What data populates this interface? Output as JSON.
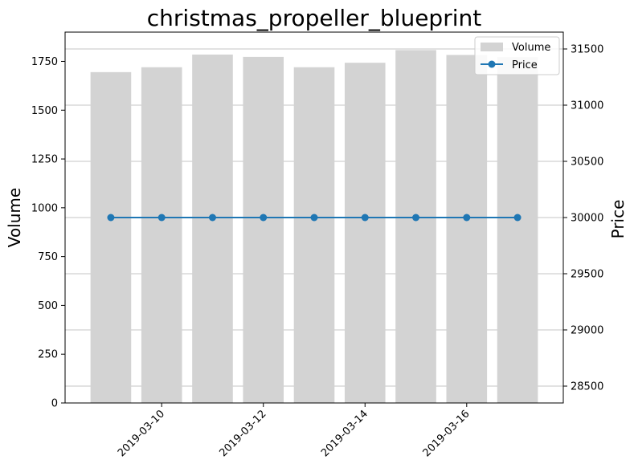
{
  "chart_data": {
    "type": "bar+line",
    "title": "christmas_propeller_blueprint",
    "x": [
      "2019-03-09",
      "2019-03-10",
      "2019-03-11",
      "2019-03-12",
      "2019-03-13",
      "2019-03-14",
      "2019-03-15",
      "2019-03-16",
      "2019-03-17"
    ],
    "xticks": [
      "2019-03-10",
      "2019-03-12",
      "2019-03-14",
      "2019-03-16"
    ],
    "series": [
      {
        "name": "Volume",
        "type": "bar",
        "axis": "left",
        "color": "#d3d3d3",
        "values": [
          1695,
          1720,
          1785,
          1773,
          1720,
          1743,
          1808,
          1783,
          1772
        ]
      },
      {
        "name": "Price",
        "type": "line",
        "axis": "right",
        "color": "#1f77b4",
        "values": [
          30000,
          30000,
          30000,
          30000,
          30000,
          30000,
          30000,
          30000,
          30000
        ]
      }
    ],
    "ylabel": "Volume",
    "ylabel_right": "Price",
    "ylim": [
      0,
      1900
    ],
    "ylim_right": [
      28350,
      31650
    ],
    "yticks": [
      0,
      250,
      500,
      750,
      1000,
      1250,
      1500,
      1750
    ],
    "yticks_right": [
      28500,
      29000,
      29500,
      30000,
      30500,
      31000,
      31500
    ],
    "grid": "right-axis horizontal",
    "legend": "top-right"
  }
}
